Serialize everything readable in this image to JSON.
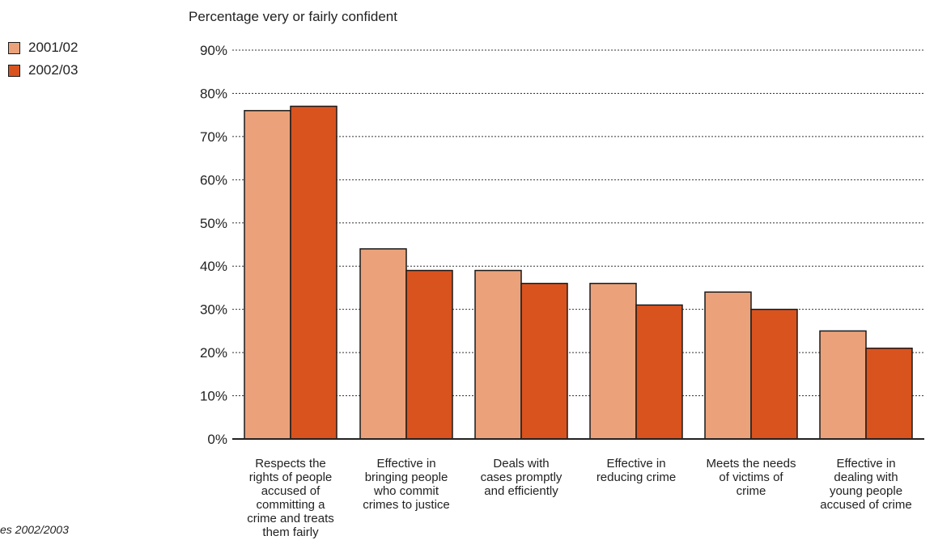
{
  "chart_data": {
    "type": "bar",
    "title": "Percentage very or fairly confident",
    "categories": [
      "Respects the rights of people accused of committing a crime and treats them fairly",
      "Effective in bringing people who commit crimes to justice",
      "Deals with cases promptly and efficiently",
      "Effective in reducing crime",
      "Meets the needs of victims of crime",
      "Effective in dealing with young people accused of crime"
    ],
    "category_lines": [
      [
        "Respects the",
        "rights of people",
        "accused of",
        "committing a",
        "crime and treats",
        "them fairly"
      ],
      [
        "Effective in",
        "bringing people",
        "who commit",
        "crimes to justice"
      ],
      [
        "Deals with",
        "cases promptly",
        "and efficiently"
      ],
      [
        "Effective in",
        "reducing crime"
      ],
      [
        "Meets the needs",
        "of victims of",
        "crime"
      ],
      [
        "Effective in",
        "dealing with",
        "young people",
        "accused of crime"
      ]
    ],
    "series": [
      {
        "name": "2001/02",
        "color": "#eba27a",
        "values": [
          76,
          44,
          39,
          36,
          34,
          25
        ]
      },
      {
        "name": "2002/03",
        "color": "#d9531f",
        "values": [
          77,
          39,
          36,
          31,
          30,
          21
        ]
      }
    ],
    "yticks": [
      "0%",
      "10%",
      "20%",
      "30%",
      "40%",
      "50%",
      "60%",
      "70%",
      "80%",
      "90%"
    ],
    "ylim": [
      0,
      90
    ],
    "grid": true,
    "legend_position": "top-left"
  },
  "source_note": "es 2002/2003"
}
